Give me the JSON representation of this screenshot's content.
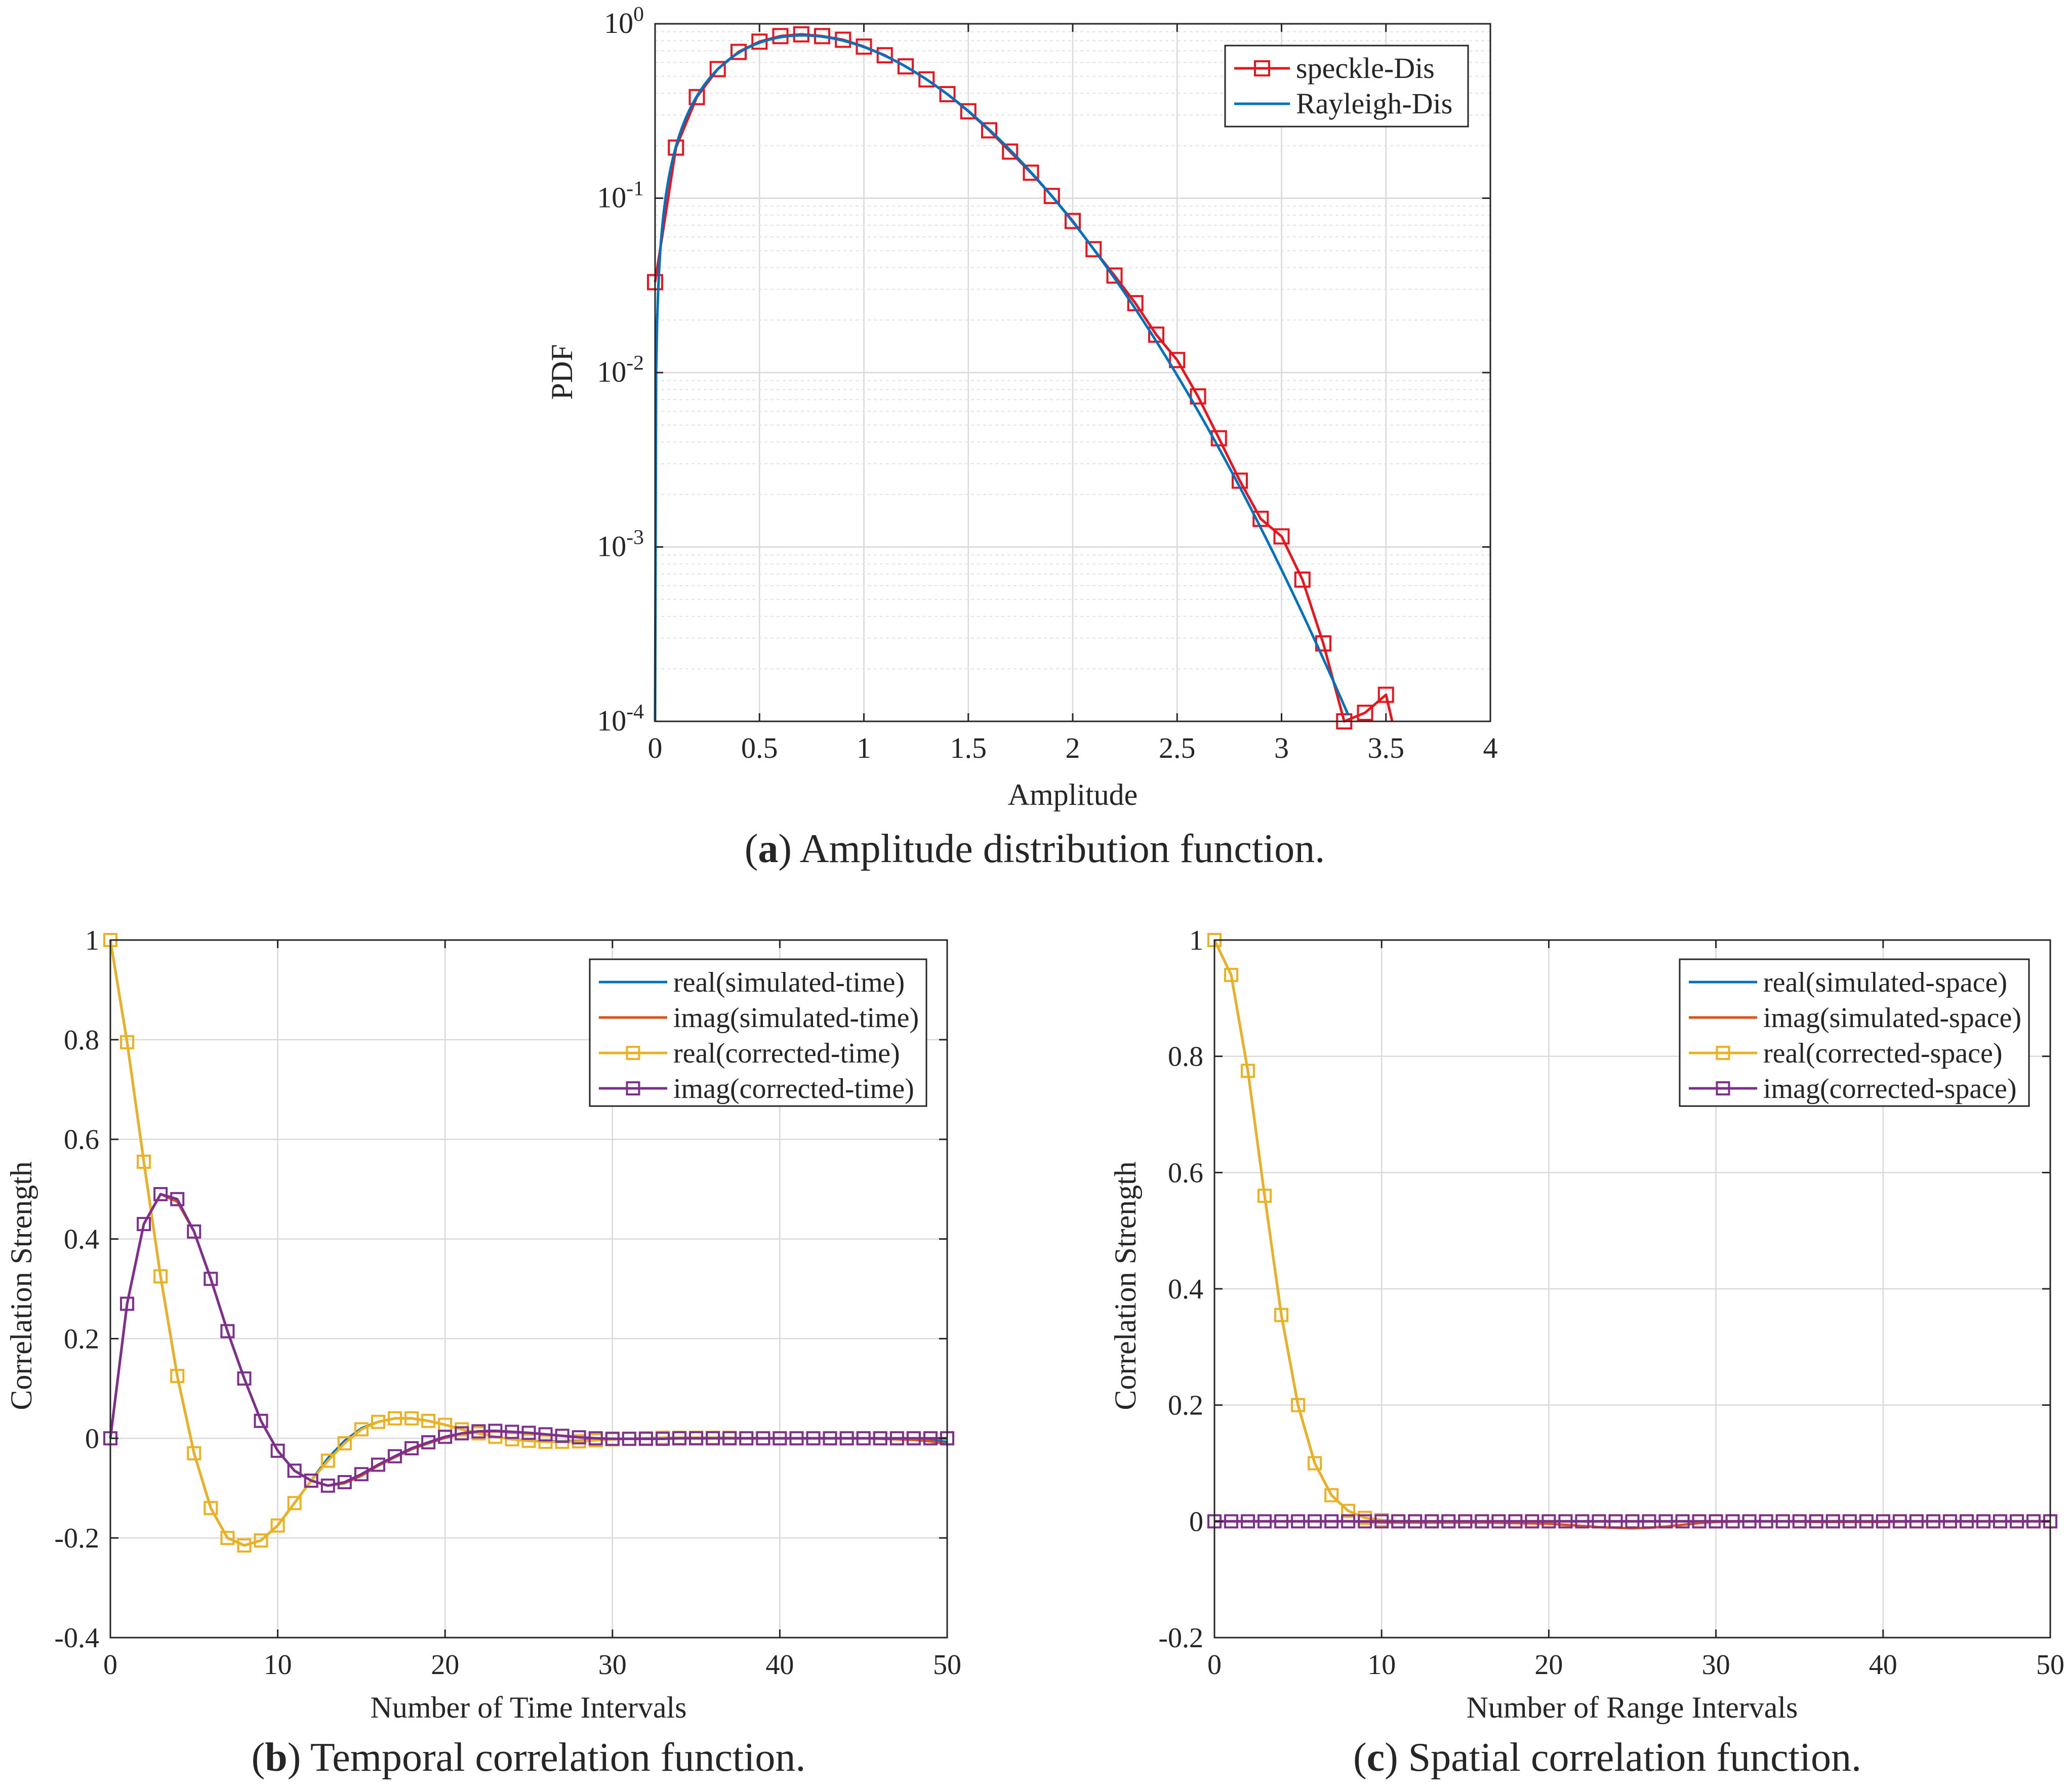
{
  "colors": {
    "red": "#e8141e",
    "blue": "#0072bd",
    "orange": "#d95319",
    "yellow": "#edb120",
    "purple": "#7e2f8e",
    "axis": "#262626",
    "grid": "#d9d9d9"
  },
  "chart_data": [
    {
      "id": "a",
      "type": "line",
      "yscale": "log",
      "title": "",
      "xlabel": "Amplitude",
      "ylabel": "PDF",
      "xlim": [
        0,
        4
      ],
      "ylim": [
        0.0001,
        1
      ],
      "xticks": [
        0,
        0.5,
        1,
        1.5,
        2,
        2.5,
        3,
        3.5,
        4
      ],
      "xtick_labels": [
        "0",
        "0.5",
        "1",
        "1.5",
        "2",
        "2.5",
        "3",
        "3.5",
        "4"
      ],
      "yticks": [
        0.0001,
        0.001,
        0.01,
        0.1,
        1
      ],
      "ytick_labels": [
        {
          "base": "10",
          "exp": "-4"
        },
        {
          "base": "10",
          "exp": "-3"
        },
        {
          "base": "10",
          "exp": "-2"
        },
        {
          "base": "10",
          "exp": "-1"
        },
        {
          "base": "10",
          "exp": "0"
        }
      ],
      "grid": true,
      "legend_position": "top-right",
      "caption": {
        "prefix": "(",
        "label": "a",
        "suffix": ") Amplitude distribution function."
      },
      "series": [
        {
          "name": "speckle-Dis",
          "color": "red",
          "marker": "square",
          "x": [
            0,
            0.1,
            0.2,
            0.3,
            0.4,
            0.5,
            0.6,
            0.7,
            0.8,
            0.9,
            1.0,
            1.1,
            1.2,
            1.3,
            1.4,
            1.5,
            1.6,
            1.7,
            1.8,
            1.9,
            2.0,
            2.1,
            2.2,
            2.3,
            2.4,
            2.5,
            2.6,
            2.7,
            2.8,
            2.9,
            3.0,
            3.1,
            3.2,
            3.3,
            3.4,
            3.5
          ],
          "y": [
            0.033,
            0.195,
            0.38,
            0.55,
            0.69,
            0.79,
            0.85,
            0.87,
            0.85,
            0.81,
            0.74,
            0.66,
            0.57,
            0.48,
            0.395,
            0.315,
            0.245,
            0.185,
            0.14,
            0.103,
            0.074,
            0.051,
            0.036,
            0.025,
            0.0165,
            0.0118,
            0.0073,
            0.0042,
            0.0024,
            0.00145,
            0.00115,
            0.00065,
            0.00028,
            0.0001,
            0.000112,
            0.000142
          ],
          "tail_x": [
            3.53
          ],
          "tail_y": [
            0.0001
          ]
        },
        {
          "name": "Rayleigh-Dis",
          "color": "blue",
          "marker": "none",
          "function": "rayleigh",
          "sigma": 0.7071,
          "x_start": 0,
          "x_end": 3.32
        }
      ]
    },
    {
      "id": "b",
      "type": "line",
      "title": "",
      "xlabel": "Number of Time Intervals",
      "ylabel": "Correlation Strength",
      "xlim": [
        0,
        50
      ],
      "ylim": [
        -0.4,
        1
      ],
      "xticks": [
        0,
        10,
        20,
        30,
        40,
        50
      ],
      "xtick_labels": [
        "0",
        "10",
        "20",
        "30",
        "40",
        "50"
      ],
      "yticks": [
        -0.4,
        -0.2,
        0,
        0.2,
        0.4,
        0.6,
        0.8,
        1
      ],
      "ytick_labels": [
        "-0.4",
        "-0.2",
        "0",
        "0.2",
        "0.4",
        "0.6",
        "0.8",
        "1"
      ],
      "grid": true,
      "legend_position": "top-right",
      "caption": {
        "prefix": "(",
        "label": "b",
        "suffix": ") Temporal correlation function."
      },
      "series": [
        {
          "name": "real(simulated-time)",
          "color": "blue",
          "marker": "none",
          "x": [
            0,
            1,
            2,
            3,
            4,
            5,
            6,
            7,
            8,
            9,
            10,
            11,
            12,
            13,
            14,
            15,
            16,
            17,
            18,
            19,
            20,
            21,
            22,
            23,
            24,
            25,
            26,
            27,
            28,
            29,
            30,
            31,
            32,
            33,
            34,
            35,
            36,
            37,
            38,
            39,
            40,
            41,
            42,
            43,
            44,
            45,
            46,
            47,
            48,
            49,
            50
          ],
          "y": [
            1,
            0.795,
            0.555,
            0.325,
            0.125,
            -0.03,
            -0.14,
            -0.2,
            -0.215,
            -0.205,
            -0.175,
            -0.13,
            -0.085,
            -0.04,
            -0.005,
            0.02,
            0.033,
            0.04,
            0.04,
            0.035,
            0.027,
            0.018,
            0.01,
            0.003,
            -0.002,
            -0.005,
            -0.006,
            -0.006,
            -0.005,
            -0.003,
            -0.002,
            -0.001,
            0,
            0.001,
            0.001,
            0.001,
            0.001,
            0.001,
            0,
            0,
            0,
            0,
            0,
            0,
            0,
            0,
            0,
            -0.001,
            -0.002,
            -0.004,
            -0.007
          ]
        },
        {
          "name": "imag(simulated-time)",
          "color": "orange",
          "marker": "none",
          "x": [
            0,
            1,
            2,
            3,
            4,
            5,
            6,
            7,
            8,
            9,
            10,
            11,
            12,
            13,
            14,
            15,
            16,
            17,
            18,
            19,
            20,
            21,
            22,
            23,
            24,
            25,
            26,
            27,
            28,
            29,
            30,
            31,
            32,
            33,
            34,
            35,
            36,
            37,
            38,
            39,
            40,
            41,
            42,
            43,
            44,
            45,
            46,
            47,
            48,
            49,
            50
          ],
          "y": [
            0,
            0.27,
            0.43,
            0.49,
            0.475,
            0.415,
            0.32,
            0.215,
            0.12,
            0.035,
            -0.025,
            -0.065,
            -0.085,
            -0.095,
            -0.09,
            -0.075,
            -0.055,
            -0.038,
            -0.022,
            -0.01,
            0.001,
            0.009,
            0.013,
            0.014,
            0.013,
            0.011,
            0.008,
            0.005,
            0.002,
            0,
            -0.001,
            -0.001,
            -0.001,
            -0.001,
            0,
            0,
            0,
            0,
            0,
            0,
            0,
            0,
            0,
            0,
            0,
            0,
            -0.001,
            -0.002,
            -0.003,
            -0.006,
            -0.012
          ]
        },
        {
          "name": "real(corrected-time)",
          "color": "yellow",
          "marker": "square",
          "x": [
            0,
            1,
            2,
            3,
            4,
            5,
            6,
            7,
            8,
            9,
            10,
            11,
            12,
            13,
            14,
            15,
            16,
            17,
            18,
            19,
            20,
            21,
            22,
            23,
            24,
            25,
            26,
            27,
            28,
            29,
            30,
            31,
            32,
            33,
            34,
            35,
            36,
            37,
            38,
            39,
            40,
            41,
            42,
            43,
            44,
            45,
            46,
            47,
            48,
            49,
            50
          ],
          "y": [
            1,
            0.795,
            0.555,
            0.325,
            0.125,
            -0.03,
            -0.14,
            -0.2,
            -0.215,
            -0.205,
            -0.175,
            -0.13,
            -0.085,
            -0.045,
            -0.01,
            0.018,
            0.033,
            0.04,
            0.04,
            0.035,
            0.027,
            0.018,
            0.01,
            0.003,
            -0.002,
            -0.005,
            -0.007,
            -0.007,
            -0.006,
            -0.004,
            -0.002,
            -0.001,
            0,
            0.001,
            0.001,
            0.001,
            0.001,
            0.001,
            0,
            0,
            0,
            0,
            0,
            0,
            0,
            0,
            0,
            0,
            0,
            0,
            0
          ]
        },
        {
          "name": "imag(corrected-time)",
          "color": "purple",
          "marker": "square",
          "x": [
            0,
            1,
            2,
            3,
            4,
            5,
            6,
            7,
            8,
            9,
            10,
            11,
            12,
            13,
            14,
            15,
            16,
            17,
            18,
            19,
            20,
            21,
            22,
            23,
            24,
            25,
            26,
            27,
            28,
            29,
            30,
            31,
            32,
            33,
            34,
            35,
            36,
            37,
            38,
            39,
            40,
            41,
            42,
            43,
            44,
            45,
            46,
            47,
            48,
            49,
            50
          ],
          "y": [
            0,
            0.27,
            0.43,
            0.49,
            0.48,
            0.415,
            0.32,
            0.215,
            0.12,
            0.035,
            -0.025,
            -0.065,
            -0.085,
            -0.095,
            -0.088,
            -0.072,
            -0.053,
            -0.036,
            -0.02,
            -0.008,
            0.003,
            0.01,
            0.014,
            0.015,
            0.013,
            0.011,
            0.008,
            0.005,
            0.002,
            0,
            -0.001,
            -0.001,
            -0.001,
            -0.001,
            0,
            0,
            0,
            0,
            0,
            0,
            0,
            0,
            0,
            0,
            0,
            0,
            0,
            0,
            0,
            0,
            0
          ]
        }
      ]
    },
    {
      "id": "c",
      "type": "line",
      "title": "",
      "xlabel": "Number of Range Intervals",
      "ylabel": "Correlation Strength",
      "xlim": [
        0,
        50
      ],
      "ylim": [
        -0.2,
        1
      ],
      "xticks": [
        0,
        10,
        20,
        30,
        40,
        50
      ],
      "xtick_labels": [
        "0",
        "10",
        "20",
        "30",
        "40",
        "50"
      ],
      "yticks": [
        -0.2,
        0,
        0.2,
        0.4,
        0.6,
        0.8,
        1
      ],
      "ytick_labels": [
        "-0.2",
        "0",
        "0.2",
        "0.4",
        "0.6",
        "0.8",
        "1"
      ],
      "grid": true,
      "legend_position": "top-right",
      "caption": {
        "prefix": "(",
        "label": "c",
        "suffix": ") Spatial correlation function."
      },
      "series": [
        {
          "name": "real(simulated-space)",
          "color": "blue",
          "marker": "none",
          "x": [
            0,
            1,
            2,
            3,
            4,
            5,
            6,
            7,
            8,
            9,
            10,
            11,
            12,
            13,
            14,
            15,
            16,
            17,
            18,
            19,
            20,
            21,
            22,
            23,
            24,
            25,
            26,
            27,
            28,
            29,
            30,
            31,
            32,
            33,
            34,
            35,
            36,
            37,
            38,
            39,
            40,
            41,
            42,
            43,
            44,
            45,
            46,
            47,
            48,
            49,
            50
          ],
          "y": [
            1,
            0.94,
            0.775,
            0.56,
            0.355,
            0.2,
            0.1,
            0.045,
            0.018,
            0.006,
            0.002,
            0,
            0,
            0,
            0,
            0,
            0,
            0,
            0,
            0,
            0,
            0,
            0,
            0,
            0,
            0,
            0,
            0,
            0,
            0,
            0,
            0,
            0,
            0,
            0,
            0,
            0,
            0,
            0,
            0,
            0,
            0,
            0,
            0,
            0,
            0,
            0,
            0,
            0,
            0,
            0
          ]
        },
        {
          "name": "imag(simulated-space)",
          "color": "orange",
          "marker": "none",
          "x": [
            0,
            2,
            4,
            6,
            8,
            10,
            12,
            14,
            16,
            18,
            20,
            21,
            22,
            23,
            24,
            25,
            26,
            27,
            28,
            29,
            30,
            32,
            34,
            36,
            38,
            40,
            42,
            44,
            46,
            48,
            50
          ],
          "y": [
            0,
            0,
            0,
            0,
            0,
            -0.002,
            -0.002,
            -0.002,
            -0.002,
            -0.003,
            -0.004,
            -0.006,
            -0.008,
            -0.01,
            -0.011,
            -0.012,
            -0.011,
            -0.009,
            -0.006,
            -0.003,
            -0.001,
            0,
            0,
            -0.001,
            -0.001,
            -0.001,
            0,
            0,
            0,
            0,
            0
          ]
        },
        {
          "name": "real(corrected-space)",
          "color": "yellow",
          "marker": "square",
          "x": [
            0,
            1,
            2,
            3,
            4,
            5,
            6,
            7,
            8,
            9,
            10,
            11,
            12,
            13,
            14,
            15,
            16,
            17,
            18,
            19,
            20,
            21,
            22,
            23,
            24,
            25,
            26,
            27,
            28,
            29,
            30,
            31,
            32,
            33,
            34,
            35,
            36,
            37,
            38,
            39,
            40,
            41,
            42,
            43,
            44,
            45,
            46,
            47,
            48,
            49,
            50
          ],
          "y": [
            1,
            0.94,
            0.775,
            0.56,
            0.355,
            0.2,
            0.1,
            0.045,
            0.018,
            0.006,
            0.002,
            0,
            0,
            0,
            0,
            0,
            0,
            0,
            0,
            0,
            0,
            0,
            0,
            0,
            0,
            0,
            0,
            0,
            0,
            0,
            0,
            0,
            0,
            0,
            0,
            0,
            0,
            0,
            0,
            0,
            0,
            0,
            0,
            0,
            0,
            0,
            0,
            0,
            0,
            0,
            0
          ]
        },
        {
          "name": "imag(corrected-space)",
          "color": "purple",
          "marker": "square",
          "x": [
            0,
            1,
            2,
            3,
            4,
            5,
            6,
            7,
            8,
            9,
            10,
            11,
            12,
            13,
            14,
            15,
            16,
            17,
            18,
            19,
            20,
            21,
            22,
            23,
            24,
            25,
            26,
            27,
            28,
            29,
            30,
            31,
            32,
            33,
            34,
            35,
            36,
            37,
            38,
            39,
            40,
            41,
            42,
            43,
            44,
            45,
            46,
            47,
            48,
            49,
            50
          ],
          "y": [
            0,
            0,
            0,
            0,
            0,
            0,
            0,
            0,
            0,
            0,
            0,
            0,
            0,
            0,
            0,
            0,
            0,
            0,
            0,
            0,
            0,
            0,
            0,
            0,
            0,
            0,
            0,
            0,
            0,
            0,
            0,
            0,
            0,
            0,
            0,
            0,
            0,
            0,
            0,
            0,
            0,
            0,
            0,
            0,
            0,
            0,
            0,
            0,
            0,
            0,
            0
          ]
        }
      ]
    }
  ]
}
